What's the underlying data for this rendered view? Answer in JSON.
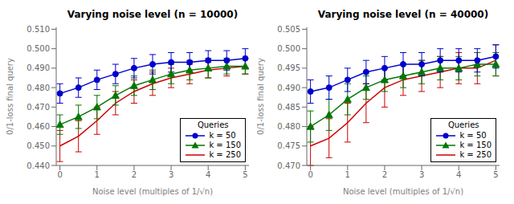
{
  "chart_data": [
    {
      "type": "line",
      "title": "Varying noise level (n = 10000)",
      "xlabel": "Noise level (multiples of 1/√n)",
      "ylabel": "0/1-loss final query",
      "legend_title": "Queries",
      "legend": "lower right",
      "grid": false,
      "xlim": [
        -0.1,
        5.1
      ],
      "xticks": [
        0,
        1,
        2,
        3,
        4,
        5
      ],
      "ylim": [
        0.44,
        0.511
      ],
      "yticks": [
        {
          "value": 0.44,
          "label": "0.440"
        },
        {
          "value": 0.45,
          "label": "0.450"
        },
        {
          "value": 0.46,
          "label": "0.460"
        },
        {
          "value": 0.47,
          "label": "0.470"
        },
        {
          "value": 0.48,
          "label": "0.480"
        },
        {
          "value": 0.49,
          "label": "0.490"
        },
        {
          "value": 0.5,
          "label": "0.500"
        },
        {
          "value": 0.51,
          "label": "0.510"
        }
      ],
      "x": [
        0,
        0.5,
        1.0,
        1.5,
        2.0,
        2.5,
        3.0,
        3.5,
        4.0,
        4.5,
        5.0
      ],
      "series": [
        {
          "name": "k = 50",
          "color": "#0000cc",
          "marker": "circle",
          "values": [
            0.477,
            0.48,
            0.484,
            0.487,
            0.49,
            0.492,
            0.493,
            0.493,
            0.494,
            0.494,
            0.495
          ],
          "errors": [
            0.005,
            0.005,
            0.005,
            0.005,
            0.005,
            0.005,
            0.005,
            0.005,
            0.005,
            0.005,
            0.005
          ]
        },
        {
          "name": "k = 150",
          "color": "#007700",
          "marker": "triangle",
          "values": [
            0.461,
            0.465,
            0.47,
            0.476,
            0.481,
            0.484,
            0.487,
            0.489,
            0.49,
            0.491,
            0.491
          ],
          "errors": [
            0.005,
            0.006,
            0.006,
            0.005,
            0.005,
            0.005,
            0.005,
            0.005,
            0.005,
            0.004,
            0.004
          ]
        },
        {
          "name": "k = 250",
          "color": "#cc0000",
          "marker": "none",
          "values": [
            0.45,
            0.455,
            0.463,
            0.472,
            0.478,
            0.482,
            0.485,
            0.487,
            0.489,
            0.49,
            0.491
          ],
          "errors": [
            0.008,
            0.008,
            0.007,
            0.006,
            0.006,
            0.006,
            0.005,
            0.005,
            0.004,
            0.004,
            0.004
          ]
        }
      ]
    },
    {
      "type": "line",
      "title": "Varying noise level (n = 40000)",
      "xlabel": "Noise level (multiples of 1/√n)",
      "ylabel": "0/1-loss final query",
      "legend_title": "Queries",
      "legend": "lower right",
      "grid": false,
      "xlim": [
        -0.1,
        5.1
      ],
      "xticks": [
        0,
        1,
        2,
        3,
        4,
        5
      ],
      "ylim": [
        0.47,
        0.5055
      ],
      "yticks": [
        {
          "value": 0.47,
          "label": "0.470"
        },
        0.475,
        {
          "value": 0.48,
          "label": "0.480"
        },
        0.485,
        {
          "value": 0.49,
          "label": "0.490"
        },
        0.495,
        {
          "value": 0.5,
          "label": "0.500"
        },
        0.505
      ],
      "x": [
        0,
        0.5,
        1.0,
        1.5,
        2.0,
        2.5,
        3.0,
        3.5,
        4.0,
        4.5,
        5.0
      ],
      "series": [
        {
          "name": "k = 50",
          "color": "#0000cc",
          "marker": "circle",
          "values": [
            0.489,
            0.49,
            0.492,
            0.494,
            0.495,
            0.496,
            0.496,
            0.497,
            0.497,
            0.497,
            0.498
          ],
          "errors": [
            0.003,
            0.003,
            0.003,
            0.003,
            0.003,
            0.003,
            0.003,
            0.003,
            0.003,
            0.003,
            0.003
          ]
        },
        {
          "name": "k = 150",
          "color": "#007700",
          "marker": "triangle",
          "values": [
            0.48,
            0.483,
            0.487,
            0.49,
            0.492,
            0.493,
            0.494,
            0.495,
            0.495,
            0.496,
            0.496
          ],
          "errors": [
            0.004,
            0.004,
            0.004,
            0.003,
            0.003,
            0.003,
            0.003,
            0.003,
            0.003,
            0.003,
            0.003
          ]
        },
        {
          "name": "k = 250",
          "color": "#cc0000",
          "marker": "none",
          "values": [
            0.475,
            0.477,
            0.481,
            0.486,
            0.49,
            0.492,
            0.493,
            0.494,
            0.495,
            0.495,
            0.497
          ],
          "errors": [
            0.005,
            0.005,
            0.005,
            0.005,
            0.005,
            0.004,
            0.004,
            0.004,
            0.004,
            0.004,
            0.004
          ]
        }
      ]
    }
  ]
}
